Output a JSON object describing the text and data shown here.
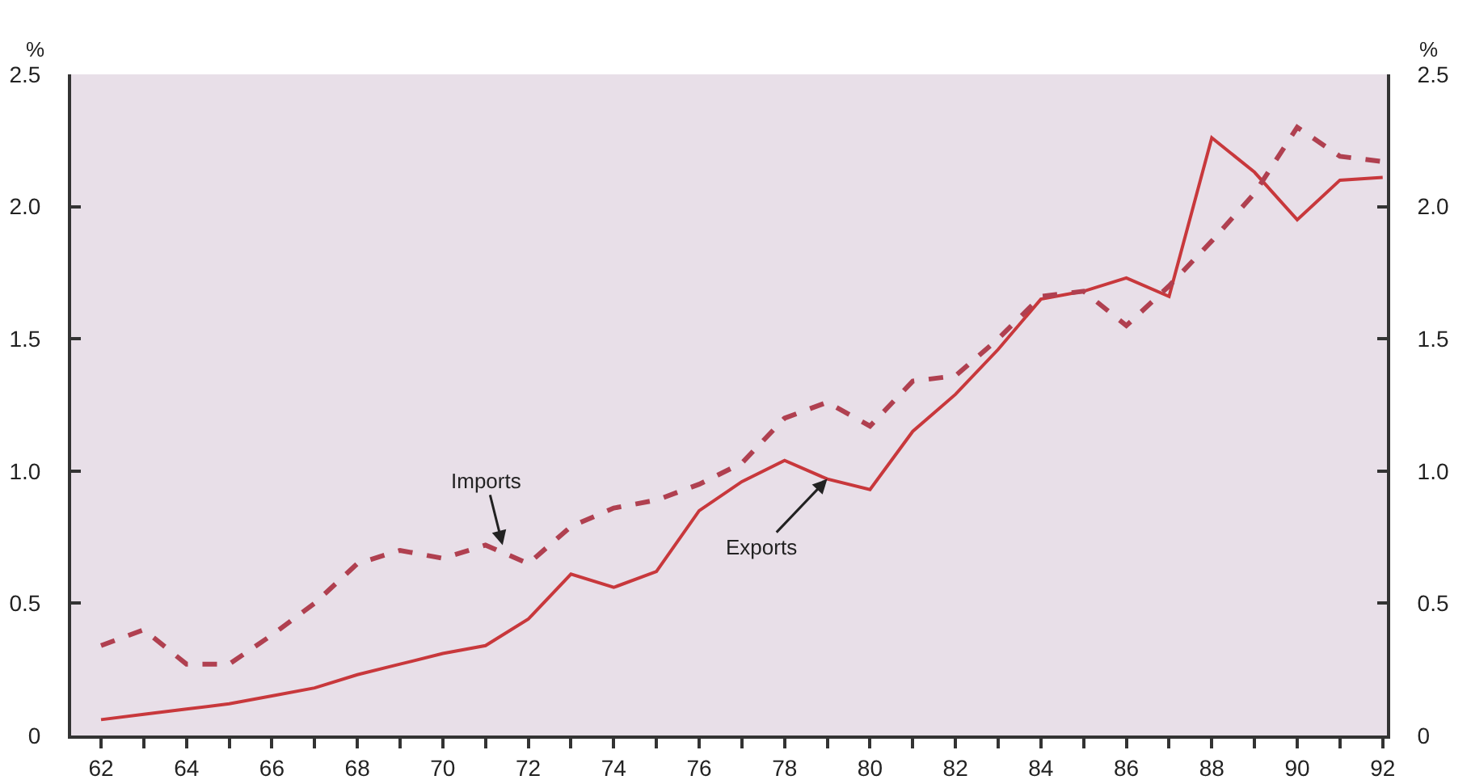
{
  "chart_data": {
    "type": "line",
    "x": [
      62,
      63,
      64,
      65,
      66,
      67,
      68,
      69,
      70,
      71,
      72,
      73,
      74,
      75,
      76,
      77,
      78,
      79,
      80,
      81,
      82,
      83,
      84,
      85,
      86,
      87,
      88,
      89,
      90,
      91,
      92
    ],
    "series": [
      {
        "color": "#c8383c",
        "line_style": "solid",
        "values": [
          0.06,
          0.08,
          0.1,
          0.12,
          0.15,
          0.18,
          0.23,
          0.27,
          0.31,
          0.34,
          0.44,
          0.61,
          0.56,
          0.62,
          0.85,
          0.96,
          1.04,
          0.97,
          0.93,
          1.15,
          1.29,
          1.46,
          1.65,
          1.68,
          1.73,
          1.66,
          2.26,
          2.13,
          1.95,
          2.1,
          2.11
        ]
      },
      {
        "color": "#b04050",
        "line_style": "dashed",
        "values": [
          0.34,
          0.4,
          0.27,
          0.27,
          0.38,
          0.5,
          0.65,
          0.7,
          0.67,
          0.72,
          0.65,
          0.79,
          0.86,
          0.89,
          0.95,
          1.03,
          1.2,
          1.26,
          1.17,
          1.34,
          1.36,
          1.5,
          1.66,
          1.68,
          1.55,
          1.7,
          1.87,
          2.05,
          2.3,
          2.19,
          2.17
        ]
      }
    ],
    "annotations": [
      {
        "text": "Imports",
        "x": 71.4,
        "y": 0.72
      },
      {
        "text": "Exports",
        "x": 79,
        "y": 0.97
      }
    ],
    "ylabel": "%",
    "y2label": "%",
    "xlim": [
      61.3,
      92.1
    ],
    "xticks": [
      62,
      {
        "value": 63,
        "label": null
      },
      64,
      {
        "value": 65,
        "label": null
      },
      66,
      {
        "value": 67,
        "label": null
      },
      68,
      {
        "value": 69,
        "label": null
      },
      70,
      {
        "value": 71,
        "label": null
      },
      72,
      {
        "value": 73,
        "label": null
      },
      74,
      {
        "value": 75,
        "label": null
      },
      76,
      {
        "value": 77,
        "label": null
      },
      78,
      {
        "value": 79,
        "label": null
      },
      80,
      {
        "value": 81,
        "label": null
      },
      82,
      {
        "value": 83,
        "label": null
      },
      84,
      {
        "value": 85,
        "label": null
      },
      86,
      {
        "value": 87,
        "label": null
      },
      88,
      {
        "value": 89,
        "label": null
      },
      90,
      {
        "value": 91,
        "label": null
      },
      92
    ],
    "ylim": [
      0,
      2.5
    ],
    "yticks": [
      0,
      {
        "value": 0.5,
        "label": "0.5"
      },
      {
        "value": 1,
        "label": "1.0"
      },
      {
        "value": 1.5,
        "label": "1.5"
      },
      {
        "value": 2,
        "label": "2.0"
      },
      {
        "value": 2.5,
        "label": "2.5"
      }
    ],
    "y2lim": [
      0,
      2.5
    ],
    "y2ticks": [
      0,
      {
        "value": 0.5,
        "label": "0.5"
      },
      {
        "value": 1,
        "label": "1.0"
      },
      {
        "value": 1.5,
        "label": "1.5"
      },
      {
        "value": 2,
        "label": "2.0"
      },
      {
        "value": 2.5,
        "label": "2.5"
      }
    ],
    "grid": false,
    "legend": false,
    "marker": "none"
  }
}
